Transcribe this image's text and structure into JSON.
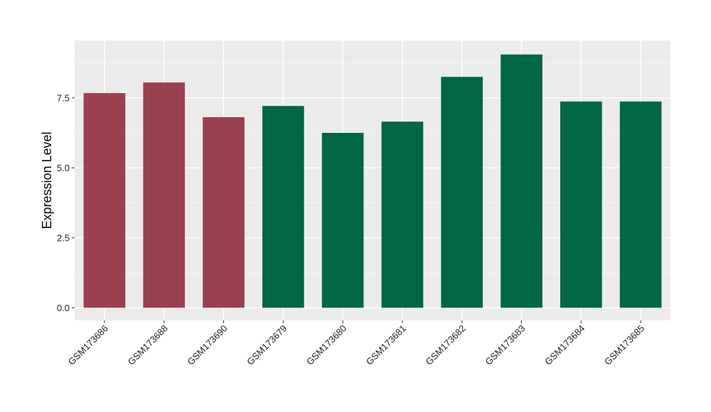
{
  "chart_data": {
    "type": "bar",
    "title": "",
    "xlabel": "",
    "ylabel": "Expression Level",
    "categories": [
      "GSM173686",
      "GSM173688",
      "GSM173690",
      "GSM173679",
      "GSM173680",
      "GSM173681",
      "GSM173682",
      "GSM173683",
      "GSM173684",
      "GSM173685"
    ],
    "values": [
      7.67,
      8.05,
      6.81,
      7.21,
      6.25,
      6.65,
      8.25,
      9.05,
      7.37,
      7.37
    ],
    "group_index": [
      0,
      0,
      0,
      1,
      1,
      1,
      1,
      1,
      1,
      1
    ],
    "group_colors": [
      "#99414f",
      "#006644"
    ],
    "ylim": [
      -0.45,
      9.55
    ],
    "y_ticks": [
      0,
      2.5,
      5,
      7.5
    ],
    "y_tick_labels": [
      "0.0",
      "2.5",
      "5.0",
      "7.5"
    ],
    "panel_background": "#ebebeb",
    "grid": true,
    "legend": "none"
  }
}
